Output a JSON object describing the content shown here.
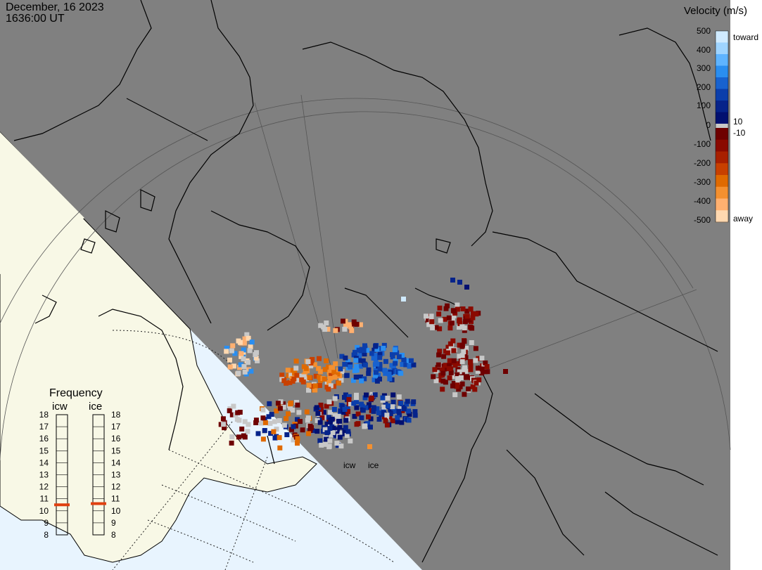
{
  "header": {
    "date": "December, 16 2023",
    "time": "1636:00 UT"
  },
  "colorbar": {
    "title": "Velocity (m/s)",
    "ticks": [
      "500",
      "400",
      "300",
      "200",
      "100",
      "10",
      "0",
      "-10",
      "-100",
      "-200",
      "-300",
      "-400",
      "-500"
    ],
    "toward_label": "toward",
    "away_label": "away",
    "colors_toward": [
      "#cfeaff",
      "#9fd4ff",
      "#5fb4ff",
      "#2a8ef0",
      "#1862cf",
      "#0b3eab",
      "#06238a",
      "#021070"
    ],
    "colors_away": [
      "#6e0000",
      "#8a0a00",
      "#a82000",
      "#c84000",
      "#e06a00",
      "#f49030",
      "#ffb070",
      "#ffd8b0"
    ],
    "ground_scatter_color": "#c8c8c8"
  },
  "frequency_panel": {
    "title": "Frequency",
    "radars": [
      {
        "name": "icw",
        "current_mhz": 10.5
      },
      {
        "name": "ice",
        "current_mhz": 10.6
      }
    ],
    "scale": [
      "18",
      "17",
      "16",
      "15",
      "14",
      "13",
      "12",
      "11",
      "10",
      "9",
      "8"
    ],
    "indicator_color": "#e04010"
  },
  "radar_sites": [
    "icw",
    "ice"
  ],
  "map_colors": {
    "night": "#808080",
    "day_land": "#f8f8e6",
    "day_ocean": "#e8f4fe",
    "coast": "#000000"
  }
}
